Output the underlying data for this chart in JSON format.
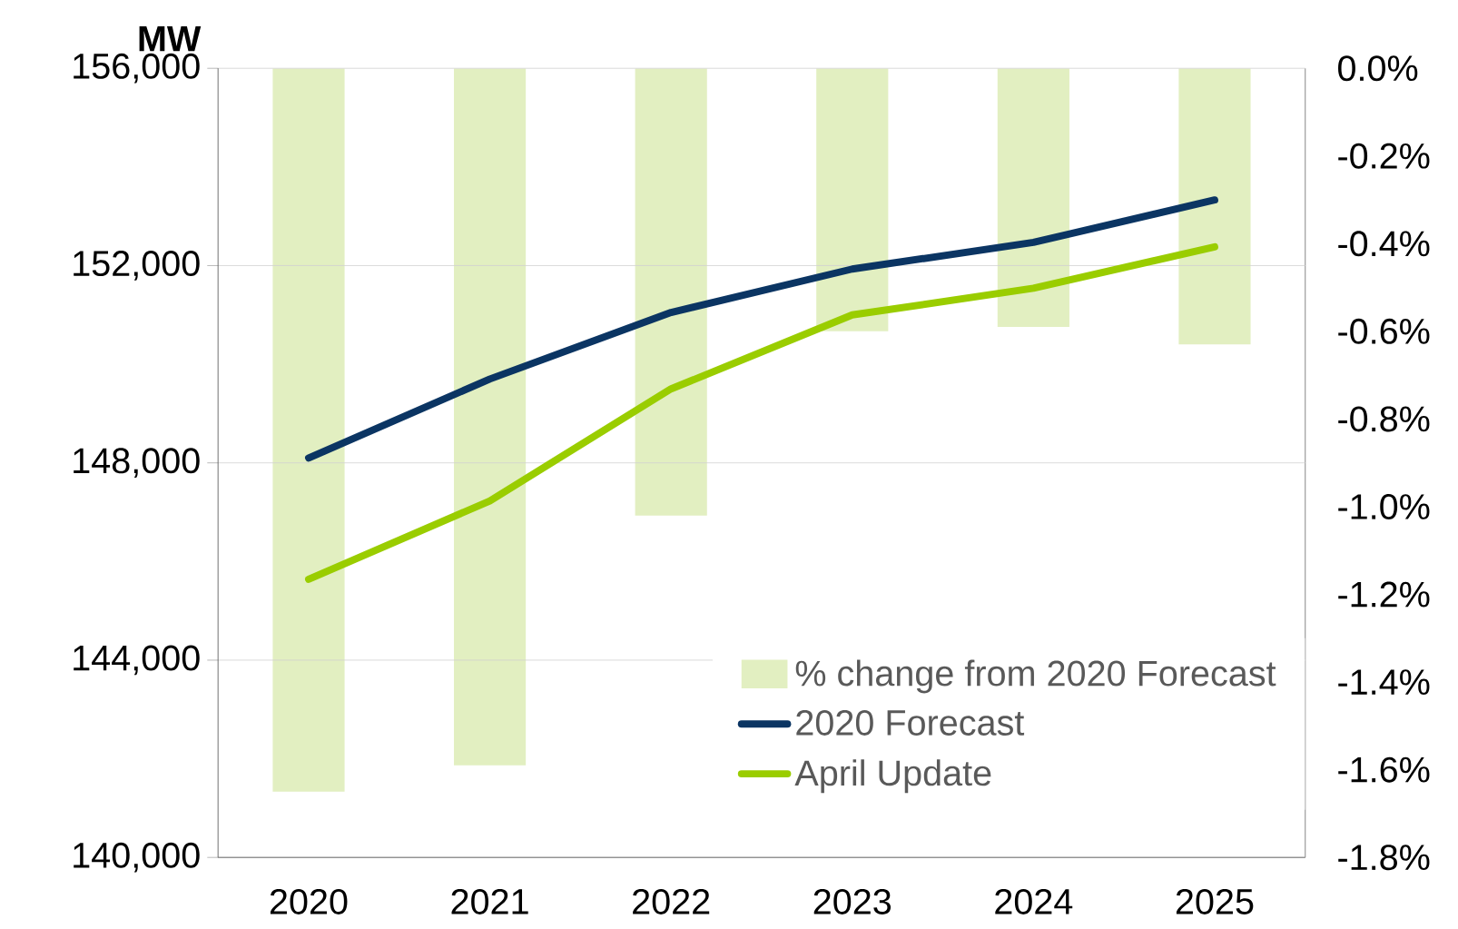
{
  "chart_data": {
    "type": "line",
    "ylabel": "MW",
    "categories": [
      "2020",
      "2021",
      "2022",
      "2023",
      "2024",
      "2025"
    ],
    "series": [
      {
        "name": "% change from 2020 Forecast",
        "type": "bar",
        "axis": "y2",
        "color": "#e2efc1",
        "values": [
          -1.65,
          -1.59,
          -1.02,
          -0.6,
          -0.59,
          -0.63
        ]
      },
      {
        "name": "2020 Forecast",
        "color": "#0b3563",
        "values": [
          148100,
          149700,
          151050,
          151930,
          152470,
          153330
        ]
      },
      {
        "name": "April Update",
        "color": "#9acd00",
        "values": [
          145640,
          147230,
          149500,
          151000,
          151540,
          152380
        ]
      }
    ],
    "ylim": [
      140000,
      156000
    ],
    "yticks": [
      {
        "value": 140000,
        "label": "140,000"
      },
      {
        "value": 144000,
        "label": "144,000"
      },
      {
        "value": 148000,
        "label": "148,000"
      },
      {
        "value": 152000,
        "label": "152,000"
      },
      {
        "value": 156000,
        "label": "156,000"
      }
    ],
    "y2lim": [
      -1.8,
      0
    ],
    "y2ticks": [
      {
        "value": 0,
        "label": "0.0%"
      },
      {
        "value": -0.2,
        "label": "-0.2%"
      },
      {
        "value": -0.4,
        "label": "-0.4%"
      },
      {
        "value": -0.6,
        "label": "-0.6%"
      },
      {
        "value": -0.8,
        "label": "-0.8%"
      },
      {
        "value": -1.0,
        "label": "-1.0%"
      },
      {
        "value": -1.2,
        "label": "-1.2%"
      },
      {
        "value": -1.4,
        "label": "-1.4%"
      },
      {
        "value": -1.6,
        "label": "-1.6%"
      },
      {
        "value": -1.8,
        "label": "-1.8%"
      }
    ],
    "grid": "y",
    "legend": "bottom right",
    "marker": "none",
    "line_style": "solid"
  }
}
